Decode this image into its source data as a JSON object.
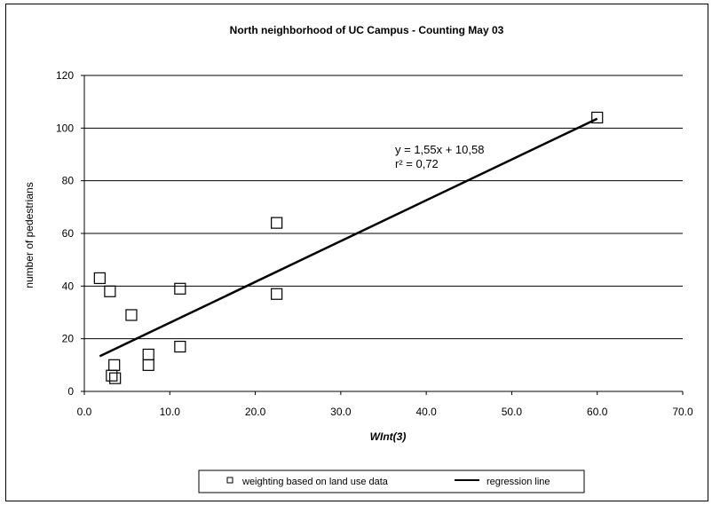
{
  "chart_data": {
    "type": "scatter",
    "title": "North neighborhood of UC Campus - Counting May 03",
    "xlabel": "WInt(3)",
    "ylabel": "number of pedestrians",
    "xlim": [
      0,
      70
    ],
    "ylim": [
      0,
      120
    ],
    "x_ticks": [
      "0.0",
      "10.0",
      "20.0",
      "30.0",
      "40.0",
      "50.0",
      "60.0",
      "70.0"
    ],
    "y_ticks": [
      "0",
      "20",
      "40",
      "60",
      "80",
      "100",
      "120"
    ],
    "grid": "horizontal",
    "series": [
      {
        "name": "weighting based on land use data",
        "marker": "open-square",
        "points": [
          {
            "x": 1.8,
            "y": 43
          },
          {
            "x": 3.0,
            "y": 38
          },
          {
            "x": 3.2,
            "y": 6
          },
          {
            "x": 3.5,
            "y": 10
          },
          {
            "x": 3.6,
            "y": 5
          },
          {
            "x": 5.5,
            "y": 29
          },
          {
            "x": 7.5,
            "y": 14
          },
          {
            "x": 7.5,
            "y": 10
          },
          {
            "x": 11.2,
            "y": 39
          },
          {
            "x": 11.2,
            "y": 17
          },
          {
            "x": 22.5,
            "y": 64
          },
          {
            "x": 22.5,
            "y": 37
          },
          {
            "x": 60.0,
            "y": 104
          }
        ]
      },
      {
        "name": "regression line",
        "marker": "line",
        "slope": 1.55,
        "intercept": 10.58,
        "x_range": [
          1.8,
          60.0
        ]
      }
    ],
    "annotation_lines": [
      "y = 1,55x + 10,58",
      "r² = 0,72"
    ],
    "legend_position": "bottom"
  }
}
